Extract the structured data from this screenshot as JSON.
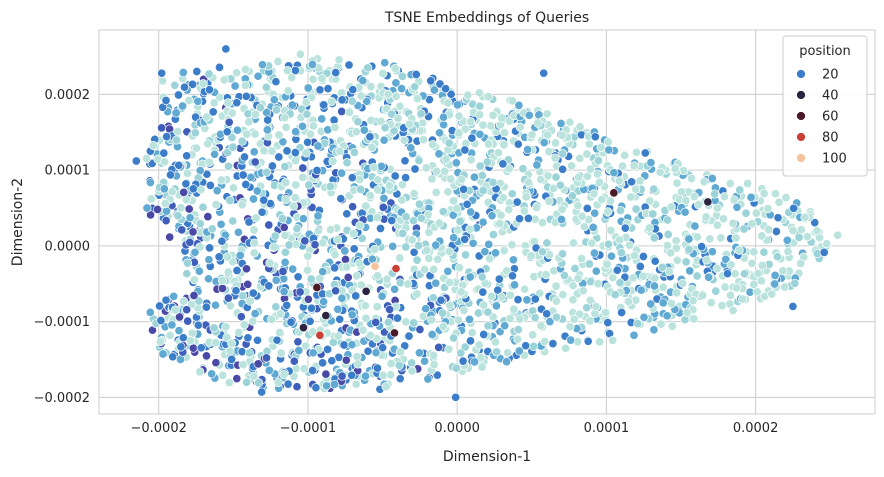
{
  "chart_data": {
    "type": "scatter",
    "title": "TSNE Embeddings of Queries",
    "xlabel": "Dimension-1",
    "ylabel": "Dimension-2",
    "xlim": [
      -0.00024,
      0.00028
    ],
    "ylim": [
      -0.000222,
      0.000285
    ],
    "xticks": [
      -0.0002,
      -0.0001,
      0.0,
      0.0001,
      0.0002
    ],
    "xtick_labels": [
      "−0.0002",
      "−0.0001",
      "0.0000",
      "0.0001",
      "0.0002"
    ],
    "yticks": [
      -0.0002,
      -0.0001,
      0.0,
      0.0001,
      0.0002
    ],
    "ytick_labels": [
      "−0.0002",
      "−0.0001",
      "0.0000",
      "0.0001",
      "0.0002"
    ],
    "grid": true,
    "legend": {
      "title": "position",
      "placement": "top-right",
      "entries": [
        {
          "label": "20",
          "color": "#3b7dc8"
        },
        {
          "label": "40",
          "color": "#2a2440"
        },
        {
          "label": "60",
          "color": "#4a1a28"
        },
        {
          "label": "80",
          "color": "#c84036"
        },
        {
          "label": "100",
          "color": "#f6c49c"
        }
      ]
    },
    "hue_variable": "position",
    "palette": [
      "#b9e3dc",
      "#9bd3d8",
      "#5fa9d2",
      "#3b7dc8",
      "#3f5fba",
      "#4a4aa6",
      "#2a2440",
      "#4a1a28",
      "#c84036",
      "#f6c49c"
    ],
    "cloud_outline": [
      [
        -0.0002,
        0.00023
      ],
      [
        -0.00016,
        0.00024
      ],
      [
        -0.00012,
        0.00025
      ],
      [
        -8e-05,
        0.00025
      ],
      [
        -4e-05,
        0.00024
      ],
      [
        0.0,
        0.00021
      ],
      [
        4e-05,
        0.00019
      ],
      [
        8e-05,
        0.00016
      ],
      [
        0.00012,
        0.00013
      ],
      [
        0.00016,
        0.0001
      ],
      [
        0.0002,
        8e-05
      ],
      [
        0.00024,
        5e-05
      ],
      [
        0.00025,
        0.0
      ],
      [
        0.00023,
        -5e-05
      ],
      [
        0.00018,
        -9e-05
      ],
      [
        0.00012,
        -0.00012
      ],
      [
        6e-05,
        -0.00014
      ],
      [
        0.0,
        -0.00017
      ],
      [
        -4e-05,
        -0.00019
      ],
      [
        -8e-05,
        -0.00019
      ],
      [
        -0.00012,
        -0.00019
      ],
      [
        -0.00016,
        -0.00018
      ],
      [
        -0.0002,
        -0.00014
      ],
      [
        -0.00021,
        -9e-05
      ],
      [
        -0.00018,
        -5e-05
      ],
      [
        -0.00019,
        0.0
      ],
      [
        -0.00021,
        5e-05
      ],
      [
        -0.00021,
        0.00012
      ],
      [
        -0.0002,
        0.00018
      ]
    ],
    "points": [
      {
        "x": -0.000215,
        "y": 0.000112,
        "position": 20
      },
      {
        "x": -0.000205,
        "y": 6.2e-05,
        "position": 10
      },
      {
        "x": -0.000198,
        "y": 0.000228,
        "position": 20
      },
      {
        "x": -0.000155,
        "y": 0.00026,
        "position": 20
      },
      {
        "x": -0.000105,
        "y": 0.000253,
        "position": 10
      },
      {
        "x": 5.8e-05,
        "y": 0.000228,
        "position": 20
      },
      {
        "x": 0.000255,
        "y": 1.4e-05,
        "position": 10
      },
      {
        "x": 0.000225,
        "y": -8e-05,
        "position": 20
      },
      {
        "x": -1e-06,
        "y": -0.0002,
        "position": 20
      },
      {
        "x": -0.000131,
        "y": -0.000193,
        "position": 20
      },
      {
        "x": -9.4e-05,
        "y": -5.5e-05,
        "position": 60
      },
      {
        "x": -8.8e-05,
        "y": -9.2e-05,
        "position": 40
      },
      {
        "x": -6.1e-05,
        "y": -6e-05,
        "position": 40
      },
      {
        "x": -0.000103,
        "y": -0.000108,
        "position": 40
      },
      {
        "x": -4.1e-05,
        "y": -3e-05,
        "position": 80
      },
      {
        "x": -5.5e-05,
        "y": -2.7e-05,
        "position": 100
      },
      {
        "x": -9.2e-05,
        "y": -0.000118,
        "position": 80
      },
      {
        "x": -4.2e-05,
        "y": -0.000115,
        "position": 60
      },
      {
        "x": 0.000105,
        "y": 7e-05,
        "position": 60
      },
      {
        "x": 0.000168,
        "y": 5.8e-05,
        "position": 40
      }
    ]
  }
}
